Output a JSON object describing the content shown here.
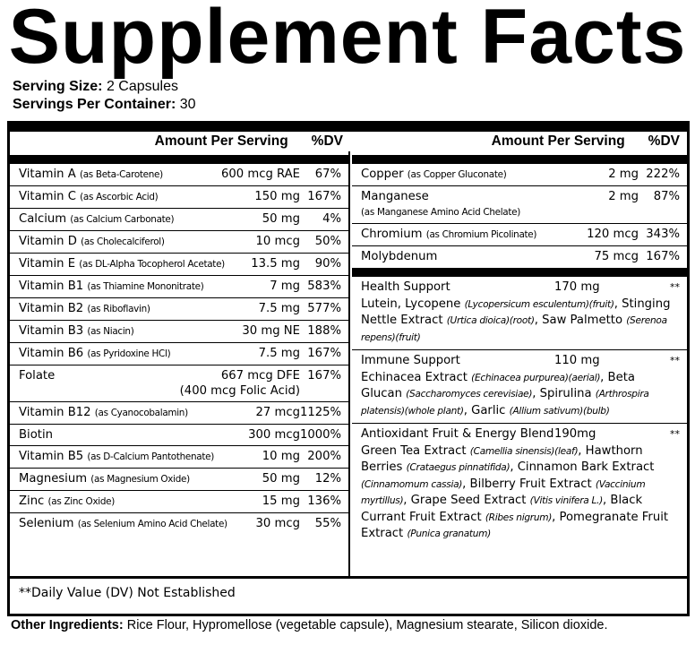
{
  "title": "Supplement Facts",
  "serving_size_label": "Serving Size:",
  "serving_size": "2 Capsules",
  "servings_label": "Servings Per Container:",
  "servings": "30",
  "header": {
    "amount": "Amount Per Serving",
    "dv": "%DV"
  },
  "left_rows": [
    {
      "name": "Vitamin A",
      "source": "(as Beta-Carotene)",
      "amount": "600 mcg RAE",
      "dv": "67%"
    },
    {
      "name": "Vitamin C",
      "source": "(as Ascorbic Acid)",
      "amount": "150 mg",
      "dv": "167%"
    },
    {
      "name": "Calcium",
      "source": "(as Calcium Carbonate)",
      "amount": "50 mg",
      "dv": "4%"
    },
    {
      "name": "Vitamin D",
      "source": "(as Cholecalciferol)",
      "amount": "10 mcg",
      "dv": "50%"
    },
    {
      "name": "Vitamin E",
      "source": "(as DL-Alpha Tocopherol Acetate)",
      "amount": "13.5 mg",
      "dv": "90%"
    },
    {
      "name": "Vitamin B1",
      "source": "(as Thiamine Mononitrate)",
      "amount": "7 mg",
      "dv": "583%"
    },
    {
      "name": "Vitamin B2",
      "source": "(as Riboflavin)",
      "amount": "7.5 mg",
      "dv": "577%"
    },
    {
      "name": "Vitamin B3",
      "source": "(as Niacin)",
      "amount": "30 mg NE",
      "dv": "188%"
    },
    {
      "name": "Vitamin B6",
      "source": "(as Pyridoxine HCl)",
      "amount": "7.5 mg",
      "dv": "167%"
    },
    {
      "name": "Folate",
      "source": "",
      "amount": "667 mcg DFE",
      "amount2": "(400 mcg Folic Acid)",
      "dv": "167%"
    },
    {
      "name": "Vitamin B12",
      "source": "(as Cyanocobalamin)",
      "amount": "27 mcg",
      "dv": "1125%"
    },
    {
      "name": "Biotin",
      "source": "",
      "amount": "300 mcg",
      "dv": "1000%"
    },
    {
      "name": "Vitamin B5",
      "source": "(as D-Calcium Pantothenate)",
      "amount": "10 mg",
      "dv": "200%"
    },
    {
      "name": "Magnesium",
      "source": "(as Magnesium Oxide)",
      "amount": "50 mg",
      "dv": "12%"
    },
    {
      "name": "Zinc",
      "source": "(as Zinc Oxide)",
      "amount": "15 mg",
      "dv": "136%"
    },
    {
      "name": "Selenium",
      "source": "(as Selenium Amino Acid Chelate)",
      "amount": "30 mcg",
      "dv": "55%"
    }
  ],
  "right_rows": [
    {
      "name": "Copper",
      "source": "(as Copper Gluconate)",
      "amount": "2 mg",
      "dv": "222%"
    },
    {
      "name": "Manganese",
      "source2": "(as Manganese Amino Acid Chelate)",
      "amount": "2 mg",
      "dv": "87%"
    },
    {
      "name": "Chromium",
      "source": "(as Chromium Picolinate)",
      "amount": "120 mcg",
      "dv": "343%"
    },
    {
      "name": "Molybdenum",
      "source": "",
      "amount": "75 mcg",
      "dv": "167%"
    }
  ],
  "blends": [
    {
      "name": "Health Support",
      "amount": "170 mg",
      "dv": "**",
      "parts": [
        {
          "t": "Lutein, Lycopene "
        },
        {
          "t": "(Lycopersicum esculentum)(fruit)",
          "i": true
        },
        {
          "t": ", Stinging Nettle Extract "
        },
        {
          "t": "(Urtica dioica)(root)",
          "i": true
        },
        {
          "t": ", Saw Palmetto "
        },
        {
          "t": "(Serenoa repens)(fruit)",
          "i": true
        }
      ]
    },
    {
      "name": "Immune Support",
      "amount": "110 mg",
      "dv": "**",
      "parts": [
        {
          "t": "Echinacea Extract "
        },
        {
          "t": "(Echinacea purpurea)(aerial)",
          "i": true
        },
        {
          "t": ", Beta Glucan "
        },
        {
          "t": "(Saccharomyces cerevisiae)",
          "i": true
        },
        {
          "t": ", Spirulina "
        },
        {
          "t": "(Arthrospira platensis)(whole plant)",
          "i": true
        },
        {
          "t": ", Garlic "
        },
        {
          "t": "(Allium sativum)(bulb)",
          "i": true
        }
      ]
    },
    {
      "name": "Antioxidant Fruit & Energy Blend",
      "amount": "190mg",
      "dv": "**",
      "parts": [
        {
          "t": "Green Tea Extract "
        },
        {
          "t": "(Camellia sinensis)(leaf)",
          "i": true
        },
        {
          "t": ", Hawthorn Berries "
        },
        {
          "t": "(Crataegus pinnatifida)",
          "i": true
        },
        {
          "t": ", Cinnamon Bark Extract "
        },
        {
          "t": "(Cinnamomum cassia)",
          "i": true
        },
        {
          "t": ", Bilberry Fruit Extract "
        },
        {
          "t": "(Vaccinium myrtillus)",
          "i": true
        },
        {
          "t": ", Grape Seed Extract "
        },
        {
          "t": "(Vitis vinifera L.)",
          "i": true
        },
        {
          "t": ", Black Currant Fruit Extract "
        },
        {
          "t": "(Ribes nigrum)",
          "i": true
        },
        {
          "t": ", Pomegranate Fruit Extract "
        },
        {
          "t": "(Punica granatum)",
          "i": true
        }
      ]
    }
  ],
  "footnote": "**Daily Value (DV) Not Established",
  "other_label": "Other Ingredients:",
  "other": "Rice Flour, Hypromellose (vegetable capsule), Magnesium stearate, Silicon dioxide."
}
